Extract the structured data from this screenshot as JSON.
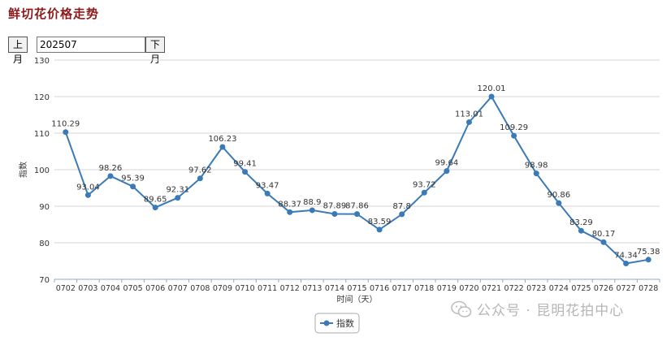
{
  "header": {
    "title": "鲜切花价格走势"
  },
  "month_nav": {
    "prev_label": "上月",
    "month_value": "202507",
    "next_label": "下月"
  },
  "watermark": {
    "text": "公众号 · 昆明花拍中心"
  },
  "chart_data": {
    "type": "line",
    "title": "鲜切花价格走势",
    "xlabel": "时间（天）",
    "ylabel": "指数",
    "ylim": [
      70,
      130
    ],
    "yticks": [
      70,
      80,
      90,
      100,
      110,
      120,
      130
    ],
    "grid": true,
    "legend_position": "bottom-center",
    "categories": [
      "0702",
      "0703",
      "0704",
      "0705",
      "0706",
      "0707",
      "0708",
      "0709",
      "0710",
      "0711",
      "0712",
      "0713",
      "0714",
      "0715",
      "0716",
      "0717",
      "0718",
      "0719",
      "0720",
      "0721",
      "0722",
      "0723",
      "0724",
      "0725",
      "0726",
      "0727",
      "0728"
    ],
    "series": [
      {
        "name": "指数",
        "color": "#3a7ab8",
        "values": [
          110.29,
          93.04,
          98.26,
          95.39,
          89.65,
          92.31,
          97.62,
          106.23,
          99.41,
          93.47,
          88.37,
          88.9,
          87.89,
          87.86,
          83.59,
          87.8,
          93.72,
          99.64,
          113.01,
          120.01,
          109.29,
          98.98,
          90.86,
          83.29,
          80.17,
          74.34,
          75.38
        ],
        "labels": [
          "110.29",
          "93.04",
          "98.26",
          "95.39",
          "89.65",
          "92.31",
          "97.62",
          "106.23",
          "99.41",
          "93.47",
          "88.37",
          "88.9",
          "87.89",
          "87.86",
          "83.59",
          "87.8",
          "93.72",
          "99.64",
          "113.01",
          "120.01",
          "109.29",
          "98.98",
          "90.86",
          "83.29",
          "80.17",
          "74.34",
          "75.38"
        ]
      }
    ]
  }
}
